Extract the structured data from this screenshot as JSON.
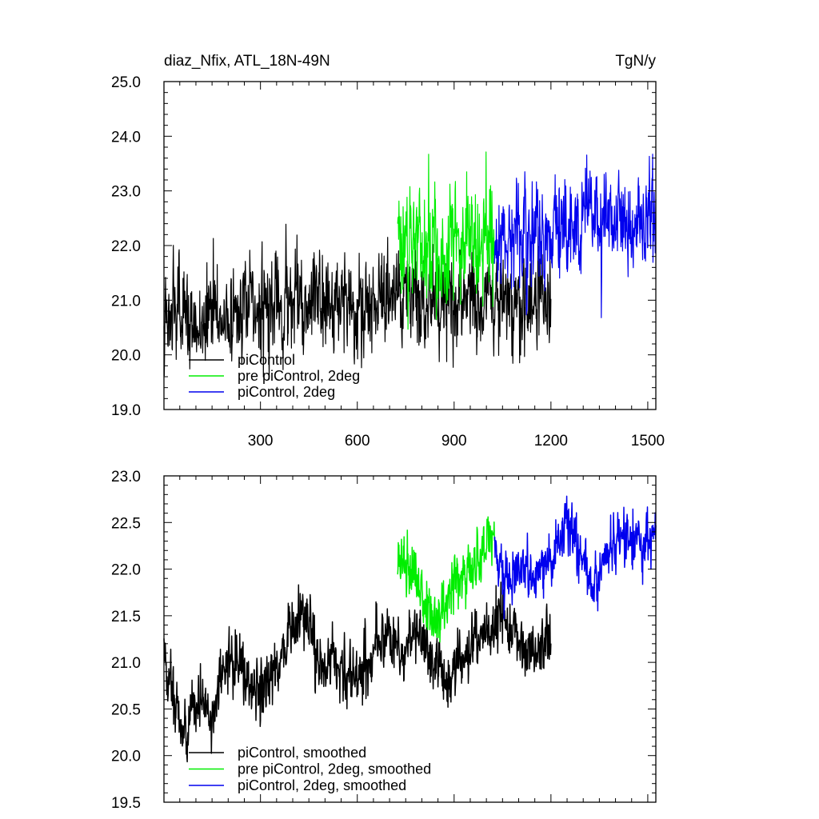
{
  "header": {
    "title_left": "diaz_Nfix, ATL_18N-49N",
    "title_right": "TgN/y"
  },
  "colors": {
    "piControl": "#000000",
    "pre_piControl_2deg": "#00ee00",
    "piControl_2deg": "#0000ee"
  },
  "chart_data": [
    {
      "type": "line",
      "title": "diaz_Nfix, ATL_18N-49N",
      "unit_label": "TgN/y",
      "xlim": [
        1,
        1525
      ],
      "ylim": [
        19.0,
        25.0
      ],
      "xticks": [
        300,
        600,
        900,
        1200,
        1500
      ],
      "xtick_labels": [
        "300",
        "600",
        "900",
        "1200",
        "1500"
      ],
      "yticks": [
        19.0,
        20.0,
        21.0,
        22.0,
        23.0,
        24.0,
        25.0
      ],
      "ytick_labels": [
        "19.0",
        "20.0",
        "21.0",
        "22.0",
        "23.0",
        "24.0",
        "25.0"
      ],
      "legend_position": "bottom-left",
      "series": [
        {
          "name": "piControl",
          "color": "#000000",
          "x_range": [
            1,
            1200
          ],
          "anchors": [
            [
              1,
              20.7
            ],
            [
              100,
              20.6
            ],
            [
              200,
              20.8
            ],
            [
              300,
              20.9
            ],
            [
              400,
              21.0
            ],
            [
              500,
              21.0
            ],
            [
              600,
              21.0
            ],
            [
              700,
              21.1
            ],
            [
              800,
              21.0
            ],
            [
              900,
              21.0
            ],
            [
              1000,
              21.05
            ],
            [
              1100,
              21.0
            ],
            [
              1200,
              21.05
            ]
          ],
          "noise_sd": 0.42
        },
        {
          "name": "pre piControl, 2deg",
          "color": "#00ee00",
          "x_range": [
            725,
            1025
          ],
          "anchors": [
            [
              725,
              22.1
            ],
            [
              800,
              21.8
            ],
            [
              850,
              21.7
            ],
            [
              900,
              21.9
            ],
            [
              950,
              22.1
            ],
            [
              1025,
              22.2
            ]
          ],
          "noise_sd": 0.5
        },
        {
          "name": "piControl, 2deg",
          "color": "#0000ee",
          "x_range": [
            1025,
            1525
          ],
          "anchors": [
            [
              1025,
              22.0
            ],
            [
              1100,
              22.1
            ],
            [
              1200,
              22.2
            ],
            [
              1300,
              22.4
            ],
            [
              1400,
              22.4
            ],
            [
              1525,
              22.5
            ]
          ],
          "noise_sd": 0.45
        }
      ]
    },
    {
      "type": "line",
      "xlim": [
        1,
        1525
      ],
      "ylim": [
        19.5,
        23.0
      ],
      "xticks": [
        300,
        600,
        900,
        1200,
        1500
      ],
      "yticks": [
        19.5,
        20.0,
        20.5,
        21.0,
        21.5,
        22.0,
        22.5,
        23.0
      ],
      "ytick_labels": [
        "19.5",
        "20.0",
        "20.5",
        "21.0",
        "21.5",
        "22.0",
        "22.5",
        "23.0"
      ],
      "legend_position": "bottom-left",
      "series": [
        {
          "name": "piControl, smoothed",
          "color": "#000000",
          "x_range": [
            1,
            1200
          ],
          "anchors": [
            [
              1,
              21.0
            ],
            [
              30,
              20.7
            ],
            [
              60,
              20.2
            ],
            [
              90,
              20.5
            ],
            [
              120,
              20.6
            ],
            [
              150,
              20.3
            ],
            [
              175,
              20.9
            ],
            [
              220,
              21.0
            ],
            [
              260,
              20.8
            ],
            [
              300,
              20.6
            ],
            [
              340,
              20.9
            ],
            [
              380,
              21.2
            ],
            [
              430,
              21.6
            ],
            [
              480,
              21.0
            ],
            [
              540,
              21.0
            ],
            [
              600,
              20.8
            ],
            [
              650,
              21.2
            ],
            [
              700,
              21.3
            ],
            [
              740,
              21.1
            ],
            [
              780,
              21.4
            ],
            [
              830,
              21.1
            ],
            [
              860,
              20.8
            ],
            [
              900,
              20.9
            ],
            [
              950,
              21.2
            ],
            [
              1000,
              21.3
            ],
            [
              1050,
              21.5
            ],
            [
              1100,
              21.2
            ],
            [
              1150,
              21.1
            ],
            [
              1200,
              21.3
            ]
          ],
          "noise_sd": 0.15
        },
        {
          "name": "pre piControl, 2deg, smoothed",
          "color": "#00ee00",
          "x_range": [
            725,
            1025
          ],
          "anchors": [
            [
              725,
              22.2
            ],
            [
              760,
              21.9
            ],
            [
              800,
              21.8
            ],
            [
              840,
              21.4
            ],
            [
              870,
              21.6
            ],
            [
              900,
              21.9
            ],
            [
              930,
              21.9
            ],
            [
              960,
              22.1
            ],
            [
              1000,
              22.3
            ],
            [
              1025,
              22.3
            ]
          ],
          "noise_sd": 0.15
        },
        {
          "name": "piControl, 2deg, smoothed",
          "color": "#0000ee",
          "x_range": [
            1025,
            1525
          ],
          "anchors": [
            [
              1025,
              22.1
            ],
            [
              1060,
              21.8
            ],
            [
              1100,
              22.1
            ],
            [
              1150,
              21.9
            ],
            [
              1200,
              22.1
            ],
            [
              1250,
              22.5
            ],
            [
              1300,
              22.1
            ],
            [
              1330,
              21.8
            ],
            [
              1360,
              22.1
            ],
            [
              1400,
              22.3
            ],
            [
              1450,
              22.4
            ],
            [
              1500,
              22.3
            ],
            [
              1525,
              22.4
            ]
          ],
          "noise_sd": 0.14
        }
      ]
    }
  ]
}
